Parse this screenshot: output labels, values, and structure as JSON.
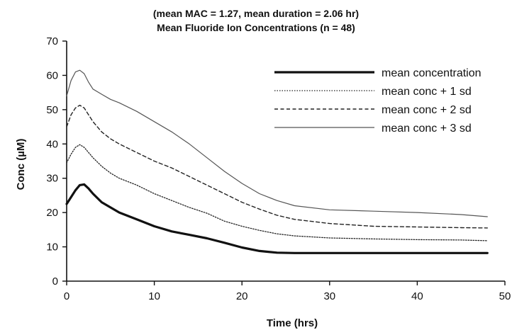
{
  "chart_data": {
    "type": "line",
    "title_line1": "(mean MAC = 1.27, mean duration = 2.06 hr)",
    "title_line2": "Mean Fluoride Ion Concentrations (n = 48)",
    "xlabel": "Time (hrs)",
    "ylabel": "Conc (µM)",
    "xlim": [
      0,
      50
    ],
    "ylim": [
      0,
      70
    ],
    "xticks": [
      0,
      10,
      20,
      30,
      40,
      50
    ],
    "yticks": [
      0,
      10,
      20,
      30,
      40,
      50,
      60,
      70
    ],
    "grid": false,
    "legend_position": "top-right",
    "series": [
      {
        "name": "mean concentration",
        "style": "solid-thick",
        "color": "#111111",
        "x": [
          0,
          0.5,
          1,
          1.5,
          2,
          2.5,
          3,
          4,
          5,
          6,
          8,
          10,
          12,
          14,
          16,
          18,
          20,
          22,
          24,
          26,
          30,
          35,
          40,
          45,
          48
        ],
        "y": [
          22.5,
          24.5,
          26.5,
          28,
          28.2,
          27,
          25.5,
          23,
          21.5,
          20,
          18,
          16,
          14.5,
          13.5,
          12.5,
          11.2,
          9.8,
          8.8,
          8.3,
          8.2,
          8.2,
          8.2,
          8.2,
          8.2,
          8.2
        ]
      },
      {
        "name": "mean conc + 1 sd",
        "style": "dotted",
        "color": "#222222",
        "x": [
          0,
          0.5,
          1,
          1.5,
          2,
          2.5,
          3,
          4,
          5,
          6,
          8,
          10,
          12,
          14,
          16,
          18,
          20,
          22,
          24,
          26,
          30,
          35,
          40,
          45,
          48
        ],
        "y": [
          34.5,
          37,
          39,
          39.8,
          39,
          37.5,
          36,
          33.5,
          31.5,
          30,
          28,
          25.5,
          23.5,
          21.5,
          19.8,
          17.5,
          16,
          14.8,
          13.8,
          13.2,
          12.6,
          12.3,
          12.1,
          12,
          11.8
        ]
      },
      {
        "name": "mean conc + 2 sd",
        "style": "dashed",
        "color": "#222222",
        "x": [
          0,
          0.5,
          1,
          1.5,
          2,
          2.5,
          3,
          4,
          5,
          6,
          8,
          10,
          12,
          14,
          16,
          18,
          20,
          22,
          24,
          26,
          30,
          35,
          40,
          45,
          48
        ],
        "y": [
          45,
          48.5,
          50.5,
          51.3,
          50.5,
          48.5,
          46.5,
          43.5,
          41.5,
          40,
          37.5,
          35,
          33,
          30.5,
          28,
          25.5,
          23,
          21,
          19.2,
          18,
          16.8,
          16,
          15.8,
          15.6,
          15.5
        ]
      },
      {
        "name": "mean conc + 3 sd",
        "style": "solid-thin",
        "color": "#555555",
        "x": [
          0,
          0.5,
          1,
          1.5,
          2,
          2.5,
          3,
          4,
          5,
          6,
          8,
          10,
          12,
          14,
          16,
          18,
          20,
          22,
          24,
          26,
          30,
          35,
          40,
          45,
          48
        ],
        "y": [
          54,
          58.5,
          61,
          61.5,
          60.5,
          58,
          56,
          54.5,
          53,
          52,
          49.5,
          46.5,
          43.5,
          40,
          36,
          32,
          28.5,
          25.5,
          23.5,
          22,
          20.8,
          20.4,
          20,
          19.4,
          18.8
        ]
      }
    ]
  }
}
